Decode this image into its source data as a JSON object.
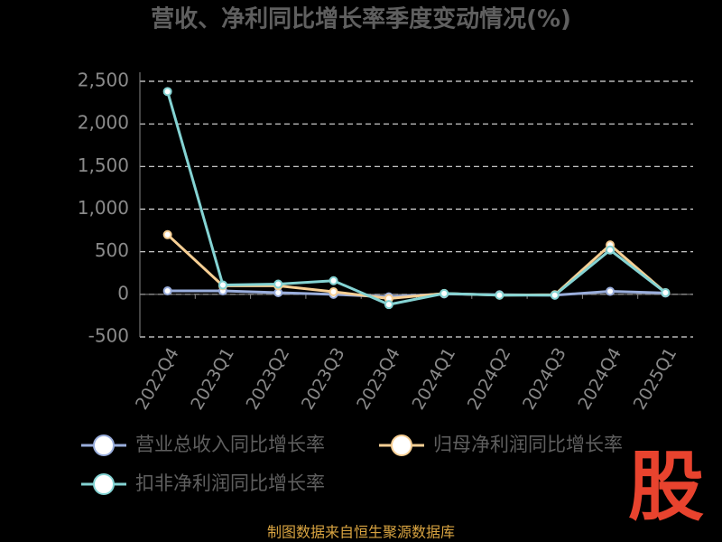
{
  "chart_data": {
    "type": "line",
    "title": "营收、净利同比增长率季度变动情况(%)",
    "categories": [
      "2022Q4",
      "2023Q1",
      "2023Q2",
      "2023Q3",
      "2023Q4",
      "2024Q1",
      "2024Q2",
      "2024Q3",
      "2024Q4",
      "2025Q1"
    ],
    "series": [
      {
        "name": "营业总收入同比增长率",
        "color": "#9aaedc",
        "values": [
          40,
          40,
          20,
          0,
          -30,
          5,
          -5,
          -10,
          35,
          15
        ]
      },
      {
        "name": "归母净利润同比增长率",
        "color": "#f7cf94",
        "values": [
          700,
          100,
          100,
          30,
          -50,
          10,
          -10,
          -5,
          580,
          20
        ]
      },
      {
        "name": "扣非净利润同比增长率",
        "color": "#84d3d3",
        "values": [
          2380,
          110,
          120,
          160,
          -120,
          10,
          -10,
          -10,
          520,
          20
        ]
      }
    ],
    "ylim": [
      -500,
      2500
    ],
    "yticks": [
      -500,
      0,
      500,
      {
        "value": 1000,
        "label": "1,000"
      },
      {
        "value": 1500,
        "label": "1,500"
      },
      {
        "value": 2000,
        "label": "2,000"
      },
      {
        "value": 2500,
        "label": "2,500"
      }
    ],
    "grid": true,
    "legend": "bottom",
    "source": "制图数据来自恒生聚源数据库",
    "logo": "股"
  }
}
